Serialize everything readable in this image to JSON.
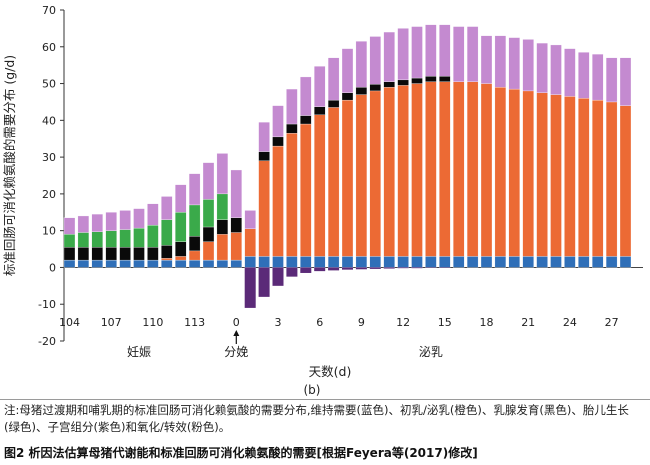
{
  "chart_data": {
    "type": "bar",
    "stacked": true,
    "ylabel": "标准回肠可消化赖氨酸的需要分布 (g/d)",
    "xlabel": "天数(d)",
    "ylim": [
      -20,
      70
    ],
    "yticks": [
      -20,
      -10,
      0,
      10,
      20,
      30,
      40,
      50,
      60,
      70
    ],
    "xtick_labels": [
      "104",
      "107",
      "110",
      "113",
      "0",
      "3",
      "6",
      "9",
      "12",
      "15",
      "18",
      "21",
      "24",
      "27"
    ],
    "period_labels": [
      "妊娠",
      "分娩",
      "泌乳"
    ],
    "panel_label": "(b)",
    "colors": {
      "maintenance": "#2f6fb8",
      "milk": "#ec6a34",
      "mammary": "#0a0a0a",
      "fetal": "#3aaa4a",
      "conceptus": "#5b2a78",
      "oxidation": "#c48ad0"
    },
    "days": [
      "104",
      "105",
      "106",
      "107",
      "108",
      "109",
      "110",
      "111",
      "112",
      "113",
      "114",
      "115",
      "0",
      "1",
      "2",
      "3",
      "4",
      "5",
      "6",
      "7",
      "8",
      "9",
      "10",
      "11",
      "12",
      "13",
      "14",
      "15",
      "16",
      "17",
      "18",
      "19",
      "20",
      "21",
      "22",
      "23",
      "24",
      "25",
      "26",
      "27",
      "28"
    ],
    "series": [
      {
        "key": "maintenance",
        "values": [
          2,
          2,
          2,
          2,
          2,
          2,
          2,
          2,
          2,
          2,
          2,
          2,
          2,
          3,
          3,
          3,
          3,
          3,
          3,
          3,
          3,
          3,
          3,
          3,
          3,
          3,
          3,
          3,
          3,
          3,
          3,
          3,
          3,
          3,
          3,
          3,
          3,
          3,
          3,
          3,
          3
        ]
      },
      {
        "key": "milk",
        "values": [
          0,
          0,
          0,
          0,
          0,
          0,
          0,
          0.5,
          1,
          2.5,
          5,
          7,
          7.5,
          7.5,
          26,
          30,
          33.5,
          36,
          38.5,
          40.5,
          42.5,
          44,
          45,
          46,
          46.5,
          47,
          47.5,
          47.5,
          47.5,
          47.5,
          47,
          46,
          45.5,
          45,
          44.5,
          44,
          43.5,
          43,
          42.5,
          42,
          41
        ]
      },
      {
        "key": "mammary",
        "values": [
          3.5,
          3.5,
          3.5,
          3.5,
          3.5,
          3.5,
          3.5,
          3.5,
          4,
          4,
          4,
          4,
          4,
          0,
          2.5,
          2.5,
          2.5,
          2.3,
          2.2,
          2,
          2,
          2,
          1.8,
          1.5,
          1.5,
          1.5,
          1.5,
          1.5,
          0,
          0,
          0,
          0,
          0,
          0,
          0,
          0,
          0,
          0,
          0,
          0,
          0
        ]
      },
      {
        "key": "fetal",
        "values": [
          3.5,
          4,
          4.2,
          4.5,
          4.8,
          5.2,
          6,
          7,
          8,
          8.5,
          7.5,
          7,
          0,
          0,
          0,
          0,
          0,
          0,
          0,
          0,
          0,
          0,
          0,
          0,
          0,
          0,
          0,
          0,
          0,
          0,
          0,
          0,
          0,
          0,
          0,
          0,
          0,
          0,
          0,
          0,
          0
        ]
      },
      {
        "key": "conceptus",
        "values": [
          0,
          0,
          0,
          0,
          0,
          0,
          0,
          0,
          0,
          0,
          0,
          0,
          0,
          -11,
          -8,
          -5,
          -2.5,
          -1.5,
          -1,
          -0.8,
          -0.6,
          -0.5,
          -0.4,
          -0.3,
          -0.2,
          -0.2,
          -0.1,
          -0.1,
          0,
          0,
          0,
          0,
          0,
          0,
          0,
          0,
          0,
          0,
          0,
          0,
          0
        ]
      },
      {
        "key": "oxidation",
        "values": [
          4.5,
          4.5,
          4.8,
          5,
          5.2,
          5.3,
          5.8,
          6.3,
          7.5,
          8.5,
          10,
          11,
          13,
          5,
          8,
          8.5,
          9.5,
          10.5,
          11,
          11.5,
          12,
          12.5,
          13,
          13.5,
          14,
          14,
          14,
          14,
          15,
          15,
          13,
          14,
          14,
          14,
          13.5,
          13.5,
          13,
          12.5,
          12.5,
          12,
          13
        ]
      }
    ]
  },
  "caption": {
    "note": "注:母猪过渡期和哺乳期的标准回肠可消化赖氨酸的需要分布,维持需要(蓝色)、初乳/泌乳(橙色)、乳腺发育(黑色)、胎儿生长(绿色)、子宫组分(紫色)和氧化/转效(粉色)。",
    "figure": "图2   析因法估算母猪代谢能和标准回肠可消化赖氨酸的需要[根据Feyera等(2017)修改]"
  }
}
